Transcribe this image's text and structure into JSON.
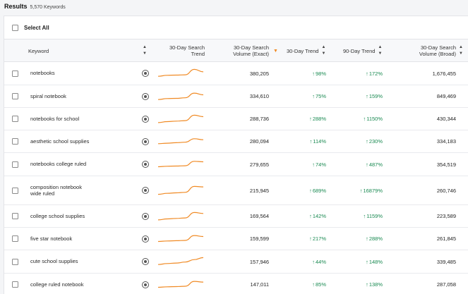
{
  "results": {
    "title": "Results",
    "count": "5,570 Keywords"
  },
  "select_all_label": "Select All",
  "columns": {
    "keyword": "Keyword",
    "trend_line1": "30-Day Search",
    "trend_line2": "Trend",
    "volume_exact_line1": "30-Day Search",
    "volume_exact_line2": "Volume (Exact)",
    "trend30": "30-Day Trend",
    "trend90": "90-Day Trend",
    "volume_broad_line1": "30-Day Search",
    "volume_broad_line2": "Volume (Broad)"
  },
  "colors": {
    "sparkline": "#f08a24",
    "trend_up": "#1a8a52",
    "sort_active": "#f08a24"
  },
  "rows": [
    {
      "keyword": "notebooks",
      "volume_exact": "380,205",
      "trend30": "98%",
      "trend90": "172%",
      "volume_broad": "1,676,455",
      "spark": [
        2,
        3,
        3.2,
        3.5,
        9,
        6.5
      ]
    },
    {
      "keyword": "spiral notebook",
      "volume_exact": "334,610",
      "trend30": "75%",
      "trend90": "159%",
      "volume_broad": "849,469",
      "spark": [
        2,
        3,
        3.2,
        3.8,
        8.5,
        6.8
      ]
    },
    {
      "keyword": "notebooks for school",
      "volume_exact": "288,736",
      "trend30": "288%",
      "trend90": "1150%",
      "volume_broad": "430,344",
      "spark": [
        1.5,
        2.5,
        3,
        3.5,
        9,
        7.5
      ]
    },
    {
      "keyword": "aesthetic school supplies",
      "volume_exact": "280,094",
      "trend30": "114%",
      "trend90": "230%",
      "volume_broad": "334,183",
      "spark": [
        3,
        3.5,
        4,
        4.5,
        8,
        7
      ]
    },
    {
      "keyword": "notebooks college ruled",
      "volume_exact": "279,655",
      "trend30": "74%",
      "trend90": "487%",
      "volume_broad": "354,519",
      "spark": [
        2.5,
        3,
        3.2,
        3.5,
        8,
        7.5
      ]
    },
    {
      "keyword": "composition notebook wide ruled",
      "volume_exact": "215,945",
      "trend30": "689%",
      "trend90": "16879%",
      "volume_broad": "260,746",
      "spark": [
        1,
        2,
        2.5,
        3,
        9,
        8.5
      ]
    },
    {
      "keyword": "college school supplies",
      "volume_exact": "169,564",
      "trend30": "142%",
      "trend90": "1159%",
      "volume_broad": "223,589",
      "spark": [
        1.5,
        2.5,
        3,
        3.5,
        9,
        8
      ]
    },
    {
      "keyword": "five star notebook",
      "volume_exact": "159,599",
      "trend30": "217%",
      "trend90": "288%",
      "volume_broad": "261,845",
      "spark": [
        2.5,
        3,
        3.3,
        3.6,
        8.5,
        7.5
      ]
    },
    {
      "keyword": "cute school supplies",
      "volume_exact": "157,946",
      "trend30": "44%",
      "trend90": "148%",
      "volume_broad": "339,485",
      "spark": [
        2,
        3,
        3.5,
        4.5,
        7,
        9
      ]
    },
    {
      "keyword": "college ruled notebook",
      "volume_exact": "147,011",
      "trend30": "85%",
      "trend90": "138%",
      "volume_broad": "287,058",
      "spark": [
        2.5,
        3,
        3.2,
        3.6,
        8.5,
        7.8
      ]
    }
  ]
}
